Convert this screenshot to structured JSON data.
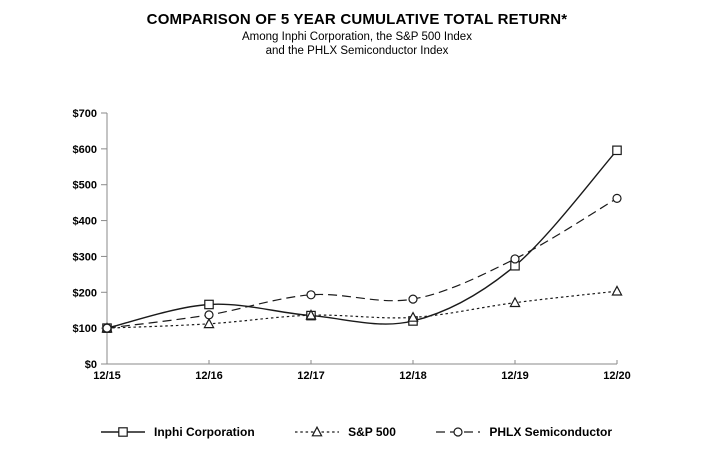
{
  "header": {
    "title": "COMPARISON OF 5 YEAR CUMULATIVE TOTAL RETURN*",
    "subtitle_line1": "Among Inphi Corporation, the S&P 500 Index",
    "subtitle_line2": "and the PHLX Semiconductor Index"
  },
  "chart_data": {
    "type": "line",
    "title": "COMPARISON OF 5 YEAR CUMULATIVE TOTAL RETURN*",
    "categories": [
      "12/15",
      "12/16",
      "12/17",
      "12/18",
      "12/19",
      "12/20"
    ],
    "series": [
      {
        "name": "Inphi Corporation",
        "marker": "square",
        "line_style": "solid",
        "values": [
          100,
          166,
          135,
          120,
          274,
          596
        ]
      },
      {
        "name": "S&P 500",
        "marker": "triangle",
        "line_style": "dotted",
        "values": [
          100,
          112,
          136,
          130,
          171,
          203
        ]
      },
      {
        "name": "PHLX Semiconductor",
        "marker": "circle",
        "line_style": "dashed",
        "values": [
          100,
          137,
          193,
          181,
          293,
          462
        ]
      }
    ],
    "y_ticks": [
      {
        "value": 0,
        "label": "$0"
      },
      {
        "value": 100,
        "label": "$100"
      },
      {
        "value": 200,
        "label": "$200"
      },
      {
        "value": 300,
        "label": "$300"
      },
      {
        "value": 400,
        "label": "$400"
      },
      {
        "value": 500,
        "label": "$500"
      },
      {
        "value": 600,
        "label": "$600"
      },
      {
        "value": 700,
        "label": "$700"
      }
    ],
    "ylim": [
      0,
      700
    ],
    "xlabel": "",
    "ylabel": "",
    "grid": false,
    "legend_position": "bottom",
    "colors": {
      "line": "#1a1a1a",
      "axis": "#8a8a8a",
      "marker_fill": "#ffffff",
      "text": "#000000"
    }
  }
}
